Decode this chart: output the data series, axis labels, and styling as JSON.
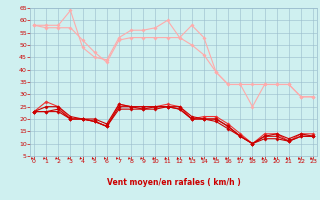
{
  "x": [
    0,
    1,
    2,
    3,
    4,
    5,
    6,
    7,
    8,
    9,
    10,
    11,
    12,
    13,
    14,
    15,
    16,
    17,
    18,
    19,
    20,
    21,
    22,
    23
  ],
  "series": [
    {
      "name": "line1_pink",
      "color": "#ffaaaa",
      "linewidth": 0.8,
      "markersize": 1.8,
      "values": [
        58,
        58,
        58,
        64,
        49,
        45,
        44,
        53,
        56,
        56,
        57,
        60,
        53,
        58,
        53,
        39,
        34,
        34,
        25,
        34,
        34,
        34,
        29,
        29
      ]
    },
    {
      "name": "line2_pink",
      "color": "#ffaaaa",
      "linewidth": 0.8,
      "markersize": 1.8,
      "values": [
        58,
        57,
        57,
        57,
        52,
        47,
        43,
        52,
        53,
        53,
        53,
        53,
        53,
        50,
        46,
        39,
        34,
        34,
        34,
        34,
        34,
        34,
        29,
        29
      ]
    },
    {
      "name": "line3_red",
      "color": "#ee3333",
      "linewidth": 0.8,
      "markersize": 1.8,
      "values": [
        23,
        27,
        25,
        20,
        20,
        19,
        17,
        26,
        25,
        25,
        25,
        26,
        25,
        20,
        21,
        21,
        18,
        14,
        10,
        14,
        14,
        11,
        14,
        14
      ]
    },
    {
      "name": "line4_red",
      "color": "#cc0000",
      "linewidth": 0.8,
      "markersize": 1.8,
      "values": [
        23,
        25,
        25,
        21,
        20,
        20,
        18,
        26,
        25,
        25,
        25,
        25,
        25,
        21,
        20,
        20,
        17,
        13,
        10,
        13,
        14,
        12,
        14,
        13
      ]
    },
    {
      "name": "line5_red",
      "color": "#cc0000",
      "linewidth": 0.8,
      "markersize": 1.8,
      "values": [
        23,
        23,
        24,
        20,
        20,
        19,
        17,
        25,
        25,
        24,
        25,
        25,
        24,
        20,
        20,
        20,
        17,
        13,
        10,
        13,
        13,
        11,
        13,
        13
      ]
    },
    {
      "name": "line6_red",
      "color": "#cc0000",
      "linewidth": 0.8,
      "markersize": 1.8,
      "values": [
        23,
        23,
        23,
        20,
        20,
        19,
        17,
        24,
        24,
        24,
        24,
        25,
        24,
        20,
        20,
        19,
        16,
        13,
        10,
        12,
        12,
        11,
        13,
        13
      ]
    }
  ],
  "xlabel": "Vent moyen/en rafales ( km/h )",
  "xlim": [
    -0.3,
    23.3
  ],
  "ylim": [
    5,
    65
  ],
  "yticks": [
    5,
    10,
    15,
    20,
    25,
    30,
    35,
    40,
    45,
    50,
    55,
    60,
    65
  ],
  "xticks": [
    0,
    1,
    2,
    3,
    4,
    5,
    6,
    7,
    8,
    9,
    10,
    11,
    12,
    13,
    14,
    15,
    16,
    17,
    18,
    19,
    20,
    21,
    22,
    23
  ],
  "bg_color": "#cff0f0",
  "grid_color": "#99bbcc",
  "arrow_color": "#cc0000",
  "xlabel_color": "#cc0000",
  "tick_color": "#cc0000"
}
